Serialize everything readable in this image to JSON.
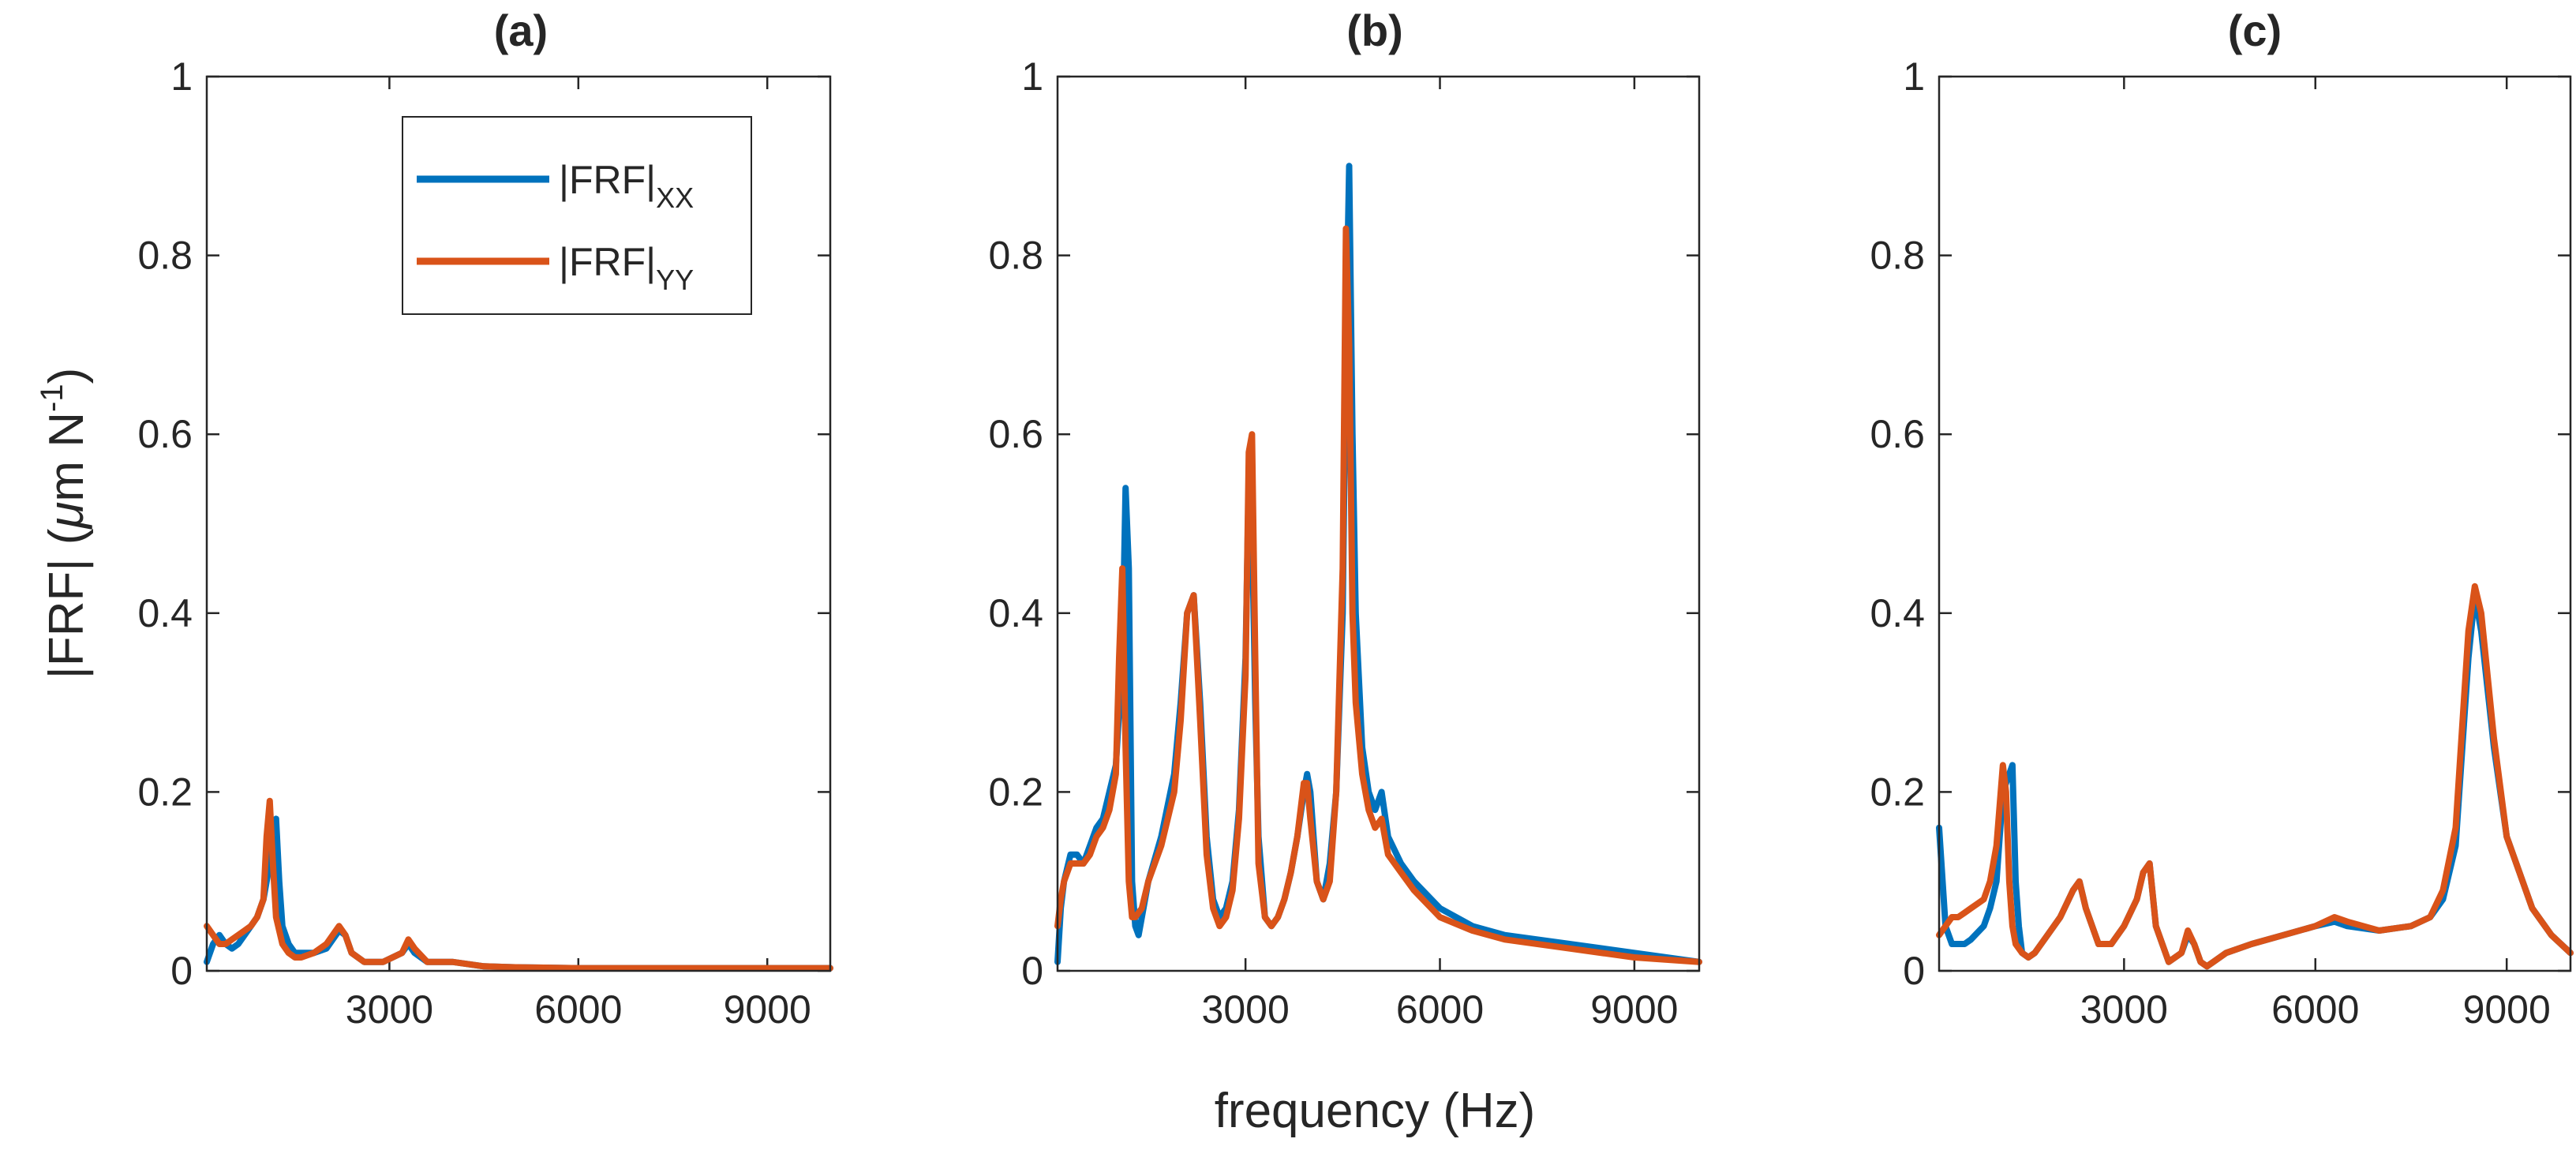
{
  "chart_data": [
    {
      "type": "line",
      "title": "(a)",
      "xlabel": "",
      "ylabel": "|FRF| (μm N⁻¹)",
      "ylabel_parts": {
        "main": "|FRF| (",
        "mu": "μ",
        "m": "m N",
        "exp": "-1",
        "close": ")"
      },
      "xlim": [
        100,
        10000
      ],
      "ylim": [
        0,
        1
      ],
      "xticks": [
        3000,
        6000,
        9000
      ],
      "xtick_labels": [
        "3000",
        "6000",
        "9000"
      ],
      "yticks": [
        0,
        0.2,
        0.4,
        0.6,
        0.8,
        1
      ],
      "ytick_labels": [
        "0",
        "0.2",
        "0.4",
        "0.6",
        "0.8",
        "1"
      ],
      "legend": {
        "position": "top-right",
        "entries": [
          {
            "base": "|FRF|",
            "sub": "XX"
          },
          {
            "base": "|FRF|",
            "sub": "YY"
          }
        ]
      },
      "series": [
        {
          "name": "|FRF|XX",
          "color": "#0072BD",
          "x": [
            100,
            200,
            300,
            400,
            500,
            600,
            700,
            800,
            900,
            1000,
            1100,
            1150,
            1200,
            1250,
            1300,
            1400,
            1500,
            1600,
            1800,
            2000,
            2200,
            2300,
            2400,
            2600,
            2900,
            3200,
            3300,
            3400,
            3600,
            4000,
            4500,
            5000,
            6000,
            7000,
            8000,
            9000,
            10000
          ],
          "y": [
            0.01,
            0.03,
            0.04,
            0.03,
            0.025,
            0.03,
            0.04,
            0.05,
            0.06,
            0.08,
            0.12,
            0.15,
            0.17,
            0.1,
            0.05,
            0.03,
            0.02,
            0.02,
            0.02,
            0.025,
            0.045,
            0.04,
            0.02,
            0.01,
            0.01,
            0.02,
            0.03,
            0.02,
            0.01,
            0.01,
            0.005,
            0.004,
            0.003,
            0.003,
            0.003,
            0.003,
            0.003
          ]
        },
        {
          "name": "|FRF|YY",
          "color": "#D95319",
          "x": [
            100,
            200,
            300,
            400,
            500,
            600,
            700,
            800,
            900,
            1000,
            1050,
            1100,
            1150,
            1200,
            1300,
            1400,
            1500,
            1600,
            1800,
            2000,
            2200,
            2300,
            2400,
            2600,
            2900,
            3200,
            3300,
            3400,
            3600,
            4000,
            4500,
            5000,
            6000,
            7000,
            8000,
            9000,
            10000
          ],
          "y": [
            0.05,
            0.04,
            0.03,
            0.03,
            0.035,
            0.04,
            0.045,
            0.05,
            0.06,
            0.08,
            0.15,
            0.19,
            0.12,
            0.06,
            0.03,
            0.02,
            0.015,
            0.015,
            0.02,
            0.03,
            0.05,
            0.04,
            0.02,
            0.01,
            0.01,
            0.02,
            0.035,
            0.025,
            0.01,
            0.01,
            0.005,
            0.004,
            0.003,
            0.003,
            0.003,
            0.003,
            0.003
          ]
        }
      ]
    },
    {
      "type": "line",
      "title": "(b)",
      "xlabel": "frequency (Hz)",
      "ylabel": "",
      "xlim": [
        100,
        10000
      ],
      "ylim": [
        0,
        1
      ],
      "xticks": [
        3000,
        6000,
        9000
      ],
      "xtick_labels": [
        "3000",
        "6000",
        "9000"
      ],
      "yticks": [
        0,
        0.2,
        0.4,
        0.6,
        0.8,
        1
      ],
      "ytick_labels": [
        "0",
        "0.2",
        "0.4",
        "0.6",
        "0.8",
        "1"
      ],
      "series": [
        {
          "name": "|FRF|XX",
          "color": "#0072BD",
          "x": [
            100,
            150,
            200,
            300,
            400,
            500,
            600,
            700,
            800,
            900,
            1000,
            1100,
            1150,
            1200,
            1250,
            1300,
            1350,
            1400,
            1500,
            1700,
            1900,
            2000,
            2100,
            2200,
            2300,
            2400,
            2500,
            2600,
            2700,
            2800,
            2900,
            3000,
            3050,
            3100,
            3150,
            3200,
            3300,
            3400,
            3500,
            3600,
            3700,
            3800,
            3900,
            3950,
            4000,
            4100,
            4200,
            4300,
            4400,
            4500,
            4550,
            4600,
            4650,
            4700,
            4800,
            4900,
            5000,
            5100,
            5200,
            5400,
            5600,
            6000,
            6500,
            7000,
            8000,
            9000,
            10000
          ],
          "y": [
            0.01,
            0.07,
            0.1,
            0.13,
            0.13,
            0.12,
            0.14,
            0.16,
            0.17,
            0.2,
            0.23,
            0.35,
            0.54,
            0.45,
            0.1,
            0.05,
            0.04,
            0.06,
            0.1,
            0.15,
            0.22,
            0.3,
            0.4,
            0.42,
            0.3,
            0.15,
            0.08,
            0.06,
            0.07,
            0.1,
            0.18,
            0.35,
            0.55,
            0.5,
            0.3,
            0.15,
            0.06,
            0.05,
            0.06,
            0.08,
            0.11,
            0.15,
            0.2,
            0.22,
            0.2,
            0.1,
            0.08,
            0.12,
            0.2,
            0.4,
            0.7,
            0.9,
            0.6,
            0.4,
            0.25,
            0.2,
            0.18,
            0.2,
            0.15,
            0.12,
            0.1,
            0.07,
            0.05,
            0.04,
            0.03,
            0.02,
            0.01
          ]
        },
        {
          "name": "|FRF|YY",
          "color": "#D95319",
          "x": [
            100,
            150,
            200,
            300,
            400,
            500,
            600,
            700,
            800,
            900,
            1000,
            1050,
            1100,
            1150,
            1200,
            1250,
            1300,
            1400,
            1500,
            1700,
            1900,
            2000,
            2100,
            2200,
            2300,
            2400,
            2500,
            2600,
            2700,
            2800,
            2900,
            3000,
            3050,
            3100,
            3150,
            3200,
            3300,
            3400,
            3500,
            3600,
            3700,
            3800,
            3900,
            3950,
            4000,
            4100,
            4200,
            4300,
            4400,
            4500,
            4550,
            4600,
            4650,
            4700,
            4800,
            4900,
            5000,
            5100,
            5200,
            5400,
            5600,
            6000,
            6500,
            7000,
            8000,
            9000,
            10000
          ],
          "y": [
            0.05,
            0.08,
            0.1,
            0.12,
            0.12,
            0.12,
            0.13,
            0.15,
            0.16,
            0.18,
            0.22,
            0.35,
            0.45,
            0.25,
            0.1,
            0.06,
            0.06,
            0.07,
            0.1,
            0.14,
            0.2,
            0.28,
            0.4,
            0.42,
            0.28,
            0.13,
            0.07,
            0.05,
            0.06,
            0.09,
            0.17,
            0.33,
            0.58,
            0.6,
            0.35,
            0.12,
            0.06,
            0.05,
            0.06,
            0.08,
            0.11,
            0.15,
            0.21,
            0.21,
            0.17,
            0.1,
            0.08,
            0.1,
            0.2,
            0.45,
            0.83,
            0.7,
            0.4,
            0.3,
            0.22,
            0.18,
            0.16,
            0.17,
            0.13,
            0.11,
            0.09,
            0.06,
            0.045,
            0.035,
            0.025,
            0.015,
            0.01
          ]
        }
      ]
    },
    {
      "type": "line",
      "title": "(c)",
      "xlabel": "",
      "ylabel": "",
      "xlim": [
        100,
        10000
      ],
      "ylim": [
        0,
        1
      ],
      "xticks": [
        3000,
        6000,
        9000
      ],
      "xtick_labels": [
        "3000",
        "6000",
        "9000"
      ],
      "yticks": [
        0,
        0.2,
        0.4,
        0.6,
        0.8,
        1
      ],
      "ytick_labels": [
        "0",
        "0.2",
        "0.4",
        "0.6",
        "0.8",
        "1"
      ],
      "series": [
        {
          "name": "|FRF|XX",
          "color": "#0072BD",
          "x": [
            100,
            200,
            300,
            400,
            500,
            600,
            800,
            900,
            1000,
            1100,
            1200,
            1250,
            1300,
            1350,
            1400,
            1500,
            1600,
            1800,
            2000,
            2200,
            2300,
            2400,
            2600,
            2800,
            3000,
            3200,
            3300,
            3400,
            3500,
            3700,
            3900,
            4000,
            4100,
            4200,
            4300,
            4400,
            4600,
            5000,
            5500,
            6000,
            6300,
            6500,
            7000,
            7500,
            7800,
            8000,
            8200,
            8400,
            8500,
            8600,
            8800,
            9000,
            9400,
            9700,
            10000
          ],
          "y": [
            0.16,
            0.05,
            0.03,
            0.03,
            0.03,
            0.035,
            0.05,
            0.07,
            0.1,
            0.2,
            0.22,
            0.23,
            0.1,
            0.05,
            0.02,
            0.015,
            0.02,
            0.04,
            0.06,
            0.09,
            0.1,
            0.07,
            0.03,
            0.03,
            0.05,
            0.08,
            0.11,
            0.12,
            0.05,
            0.01,
            0.02,
            0.04,
            0.03,
            0.01,
            0.005,
            0.01,
            0.02,
            0.03,
            0.04,
            0.05,
            0.055,
            0.05,
            0.045,
            0.05,
            0.06,
            0.08,
            0.14,
            0.35,
            0.42,
            0.38,
            0.25,
            0.15,
            0.07,
            0.04,
            0.02
          ]
        },
        {
          "name": "|FRF|YY",
          "color": "#D95319",
          "x": [
            100,
            200,
            300,
            400,
            500,
            600,
            800,
            900,
            1000,
            1100,
            1150,
            1200,
            1250,
            1300,
            1400,
            1500,
            1600,
            1800,
            2000,
            2200,
            2300,
            2400,
            2600,
            2800,
            3000,
            3200,
            3300,
            3400,
            3500,
            3700,
            3900,
            4000,
            4100,
            4200,
            4300,
            4400,
            4600,
            5000,
            5500,
            6000,
            6300,
            6500,
            7000,
            7500,
            7800,
            8000,
            8200,
            8400,
            8500,
            8600,
            8800,
            9000,
            9400,
            9700,
            10000
          ],
          "y": [
            0.04,
            0.05,
            0.06,
            0.06,
            0.065,
            0.07,
            0.08,
            0.1,
            0.14,
            0.23,
            0.2,
            0.1,
            0.05,
            0.03,
            0.02,
            0.015,
            0.02,
            0.04,
            0.06,
            0.09,
            0.1,
            0.07,
            0.03,
            0.03,
            0.05,
            0.08,
            0.11,
            0.12,
            0.05,
            0.01,
            0.02,
            0.045,
            0.03,
            0.01,
            0.005,
            0.01,
            0.02,
            0.03,
            0.04,
            0.05,
            0.06,
            0.055,
            0.045,
            0.05,
            0.06,
            0.09,
            0.16,
            0.38,
            0.43,
            0.4,
            0.26,
            0.15,
            0.07,
            0.04,
            0.02
          ]
        }
      ]
    }
  ]
}
